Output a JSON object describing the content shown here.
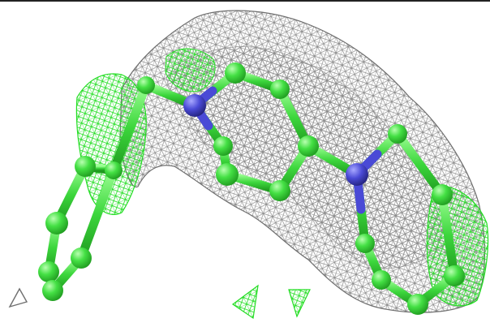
{
  "image": {
    "subject": "molecular-structure-with-electron-density-mesh",
    "background_color": "#ffffff",
    "frame_line_color": "#222222",
    "colors": {
      "mesh_gray": "#8c8c8c",
      "mesh_gray_dark": "#6f6f6f",
      "mesh_green": "#22dd22",
      "carbon_green": "#44e044",
      "carbon_green_highlight": "#b8ffb0",
      "carbon_green_shade": "#1f9a1f",
      "nitrogen_blue": "#4a4ad6",
      "nitrogen_blue_shade": "#22227a"
    }
  }
}
